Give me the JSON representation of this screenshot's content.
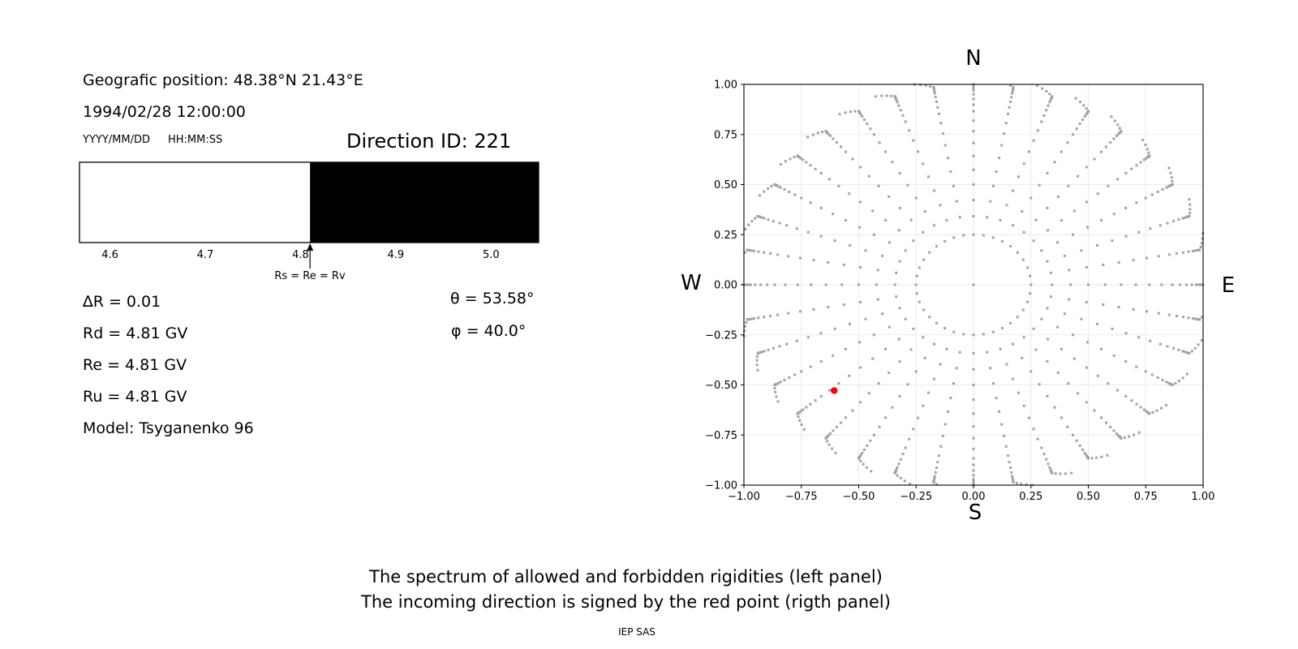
{
  "left_panel": {
    "geo_position": "Geografic position: 48.38°N 21.43°E",
    "datetime": "1994/02/28 12:00:00",
    "date_format_label": "YYYY/MM/DD",
    "time_format_label": "HH:MM:SS",
    "direction_id_label": "Direction ID: 221",
    "stats_left": [
      "∆R = 0.01",
      "Rd = 4.81 GV",
      "Re = 4.81 GV",
      "Ru = 4.81 GV",
      "Model: Tsyganenko 96"
    ],
    "stats_right": [
      "θ = 53.58°",
      "φ = 40.0°"
    ]
  },
  "caption": {
    "line1": "The spectrum of allowed and forbidden rigidities (left panel)",
    "line2": "The incoming direction is signed by the red point (rigth panel)",
    "credit": "IEP SAS"
  },
  "chart_data": [
    {
      "type": "bar",
      "name": "rigidity-spectrum",
      "xlim": [
        4.568,
        5.05
      ],
      "xticks": [
        4.6,
        4.7,
        4.8,
        4.9,
        5.0
      ],
      "segments": [
        {
          "label": "allowed",
          "from": 4.568,
          "to": 4.81,
          "color": "#ffffff"
        },
        {
          "label": "forbidden",
          "from": 4.81,
          "to": 5.05,
          "color": "#000000"
        }
      ],
      "annotation": {
        "value": 4.81,
        "label": "Rs = Re = Rv"
      }
    },
    {
      "type": "scatter",
      "name": "incoming-direction-map",
      "xlim": [
        -1,
        1
      ],
      "ylim": [
        -1,
        1
      ],
      "xticks": [
        -1.0,
        -0.75,
        -0.5,
        -0.25,
        0.0,
        0.25,
        0.5,
        0.75,
        1.0
      ],
      "yticks": [
        -1.0,
        -0.75,
        -0.5,
        -0.25,
        0.0,
        0.25,
        0.5,
        0.75,
        1.0
      ],
      "grid": true,
      "grid_color": "#eaeaea",
      "compass": {
        "top": "N",
        "bottom": "S",
        "left": "W",
        "right": "E"
      },
      "dot_color": "#8c8c8c",
      "direction_grid": {
        "azimuth_count": 36,
        "azimuth_step_deg": 10,
        "zenith_deg": [
          14.5,
          20,
          25,
          30,
          35,
          40,
          45,
          50,
          55,
          60,
          64,
          68,
          72,
          76,
          79,
          82,
          84.5,
          86.5,
          88,
          89,
          90
        ],
        "radius_mapping": "sin(zenith)",
        "tip_hook": [
          {
            "r": 1.008,
            "daz": 0.8
          },
          {
            "r": 1.016,
            "daz": 1.8
          },
          {
            "r": 1.024,
            "daz": 3.0
          },
          {
            "r": 1.032,
            "daz": 4.4
          }
        ],
        "center_point": true
      },
      "red_point": {
        "x": -0.607,
        "y": -0.528,
        "color": "#ff0000"
      }
    }
  ]
}
